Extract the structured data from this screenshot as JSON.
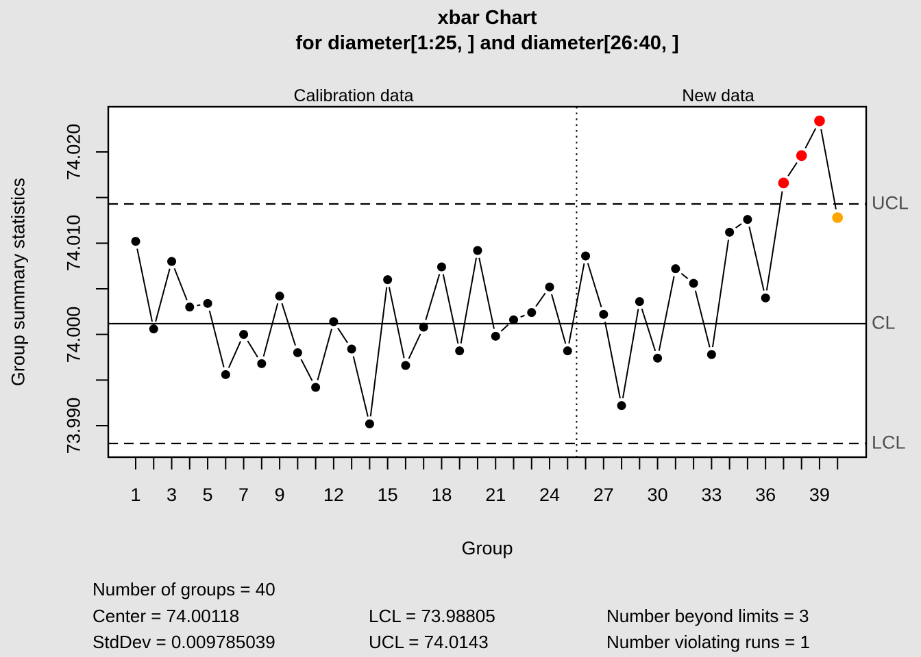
{
  "chart_data": {
    "type": "line",
    "title": "xbar Chart",
    "subtitle": "for diameter[1:25, ] and diameter[26:40, ]",
    "xlabel": "Group",
    "ylabel": "Group summary statistics",
    "x": [
      1,
      2,
      3,
      4,
      5,
      6,
      7,
      8,
      9,
      10,
      11,
      12,
      13,
      14,
      15,
      16,
      17,
      18,
      19,
      20,
      21,
      22,
      23,
      24,
      25,
      26,
      27,
      28,
      29,
      30,
      31,
      32,
      33,
      34,
      35,
      36,
      37,
      38,
      39,
      40
    ],
    "values": [
      74.0102,
      74.0006,
      74.008,
      74.003,
      74.0034,
      73.9956,
      74.0,
      73.9968,
      74.0042,
      73.998,
      73.9942,
      74.0014,
      73.9984,
      73.9902,
      74.006,
      73.9966,
      74.0008,
      74.0074,
      73.9982,
      74.0092,
      73.9998,
      74.0016,
      74.0024,
      74.0052,
      73.9982,
      74.0086,
      74.0022,
      73.9922,
      74.0036,
      73.9974,
      74.0072,
      74.0056,
      73.9978,
      74.0112,
      74.0126,
      74.004,
      74.0166,
      74.0196,
      74.0234,
      74.0128
    ],
    "center": 74.00118,
    "ucl": 74.0143,
    "lcl": 73.98805,
    "ylim": [
      73.9866,
      74.025
    ],
    "divider_after_group": 25,
    "beyond_limits_points": [
      37,
      38,
      39
    ],
    "violating_runs_points": [
      40
    ],
    "sections": {
      "calibration": "Calibration data",
      "newdata": "New data"
    },
    "x_axis": {
      "ticks_every": 1,
      "labeled_ticks": [
        1,
        3,
        5,
        7,
        9,
        12,
        15,
        18,
        21,
        24,
        27,
        30,
        33,
        36,
        39
      ]
    },
    "y_axis": {
      "labeled_ticks": [
        {
          "v": 74.02,
          "label": "74.020"
        },
        {
          "v": 74.01,
          "label": "74.010"
        },
        {
          "v": 74.0,
          "label": "74.000"
        },
        {
          "v": 73.99,
          "label": "73.990"
        }
      ],
      "minor_ticks": [
        74.015,
        74.005,
        73.995
      ]
    },
    "limit_labels": {
      "ucl": "UCL",
      "cl": "CL",
      "lcl": "LCL"
    },
    "legend_position": "none",
    "grid": false
  },
  "stats": {
    "groups": "Number of groups = 40",
    "center": "Center = 74.00118",
    "stddev": "StdDev = 0.009785039",
    "lcl": "LCL = 73.98805",
    "ucl": "UCL = 74.0143",
    "beyond": "Number beyond limits = 3",
    "runs": "Number violating runs = 1"
  },
  "colors": {
    "background": "#E5E5E5",
    "plot_background": "#FFFFFF",
    "line": "#000000",
    "point": "#000000",
    "beyond_limits": "#FF0000",
    "violating_runs": "#FFA500",
    "limit_label": "#4D4D4D"
  }
}
